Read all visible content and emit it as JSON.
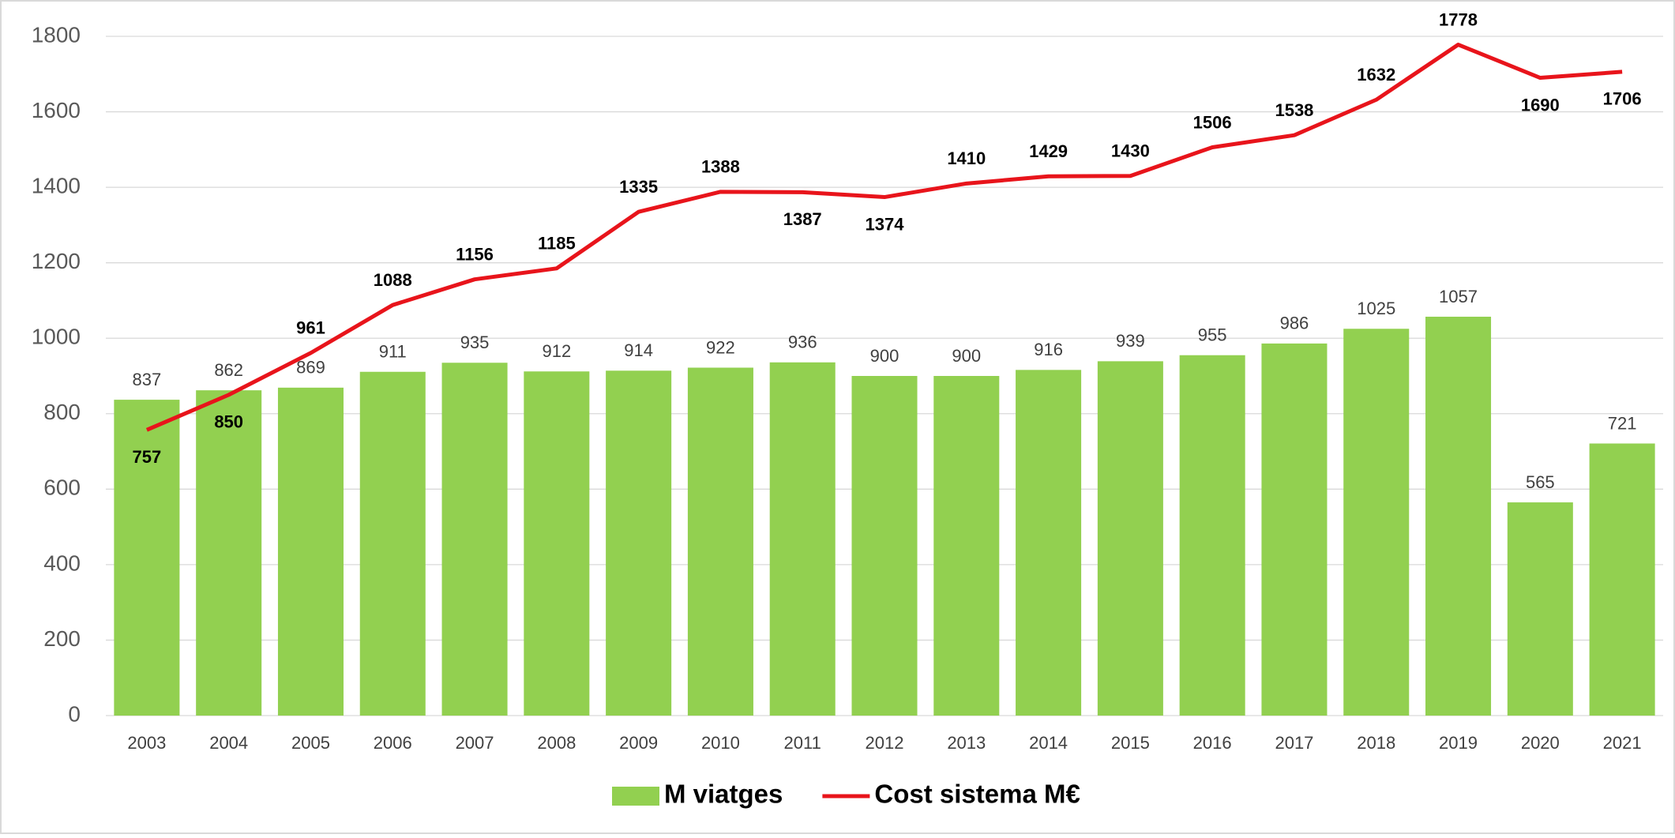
{
  "chart_data": {
    "type": "bar_line",
    "categories": [
      "2003",
      "2004",
      "2005",
      "2006",
      "2007",
      "2008",
      "2009",
      "2010",
      "2011",
      "2012",
      "2013",
      "2014",
      "2015",
      "2016",
      "2017",
      "2018",
      "2019",
      "2020",
      "2021"
    ],
    "series": [
      {
        "name": "M viatges",
        "type": "bar",
        "color": "#92d050",
        "values": [
          837,
          862,
          869,
          911,
          935,
          912,
          914,
          922,
          936,
          900,
          900,
          916,
          939,
          955,
          986,
          1025,
          1057,
          565,
          721
        ]
      },
      {
        "name": "Cost sistema M€",
        "type": "line",
        "color": "#e8141b",
        "values": [
          757,
          850,
          961,
          1088,
          1156,
          1185,
          1335,
          1388,
          1387,
          1374,
          1410,
          1429,
          1430,
          1506,
          1538,
          1632,
          1778,
          1690,
          1706
        ]
      }
    ],
    "ylim": [
      0,
      1800
    ],
    "yticks": [
      0,
      200,
      400,
      600,
      800,
      1000,
      1200,
      1400,
      1600,
      1800
    ],
    "grid": true,
    "legend": "bottom"
  }
}
